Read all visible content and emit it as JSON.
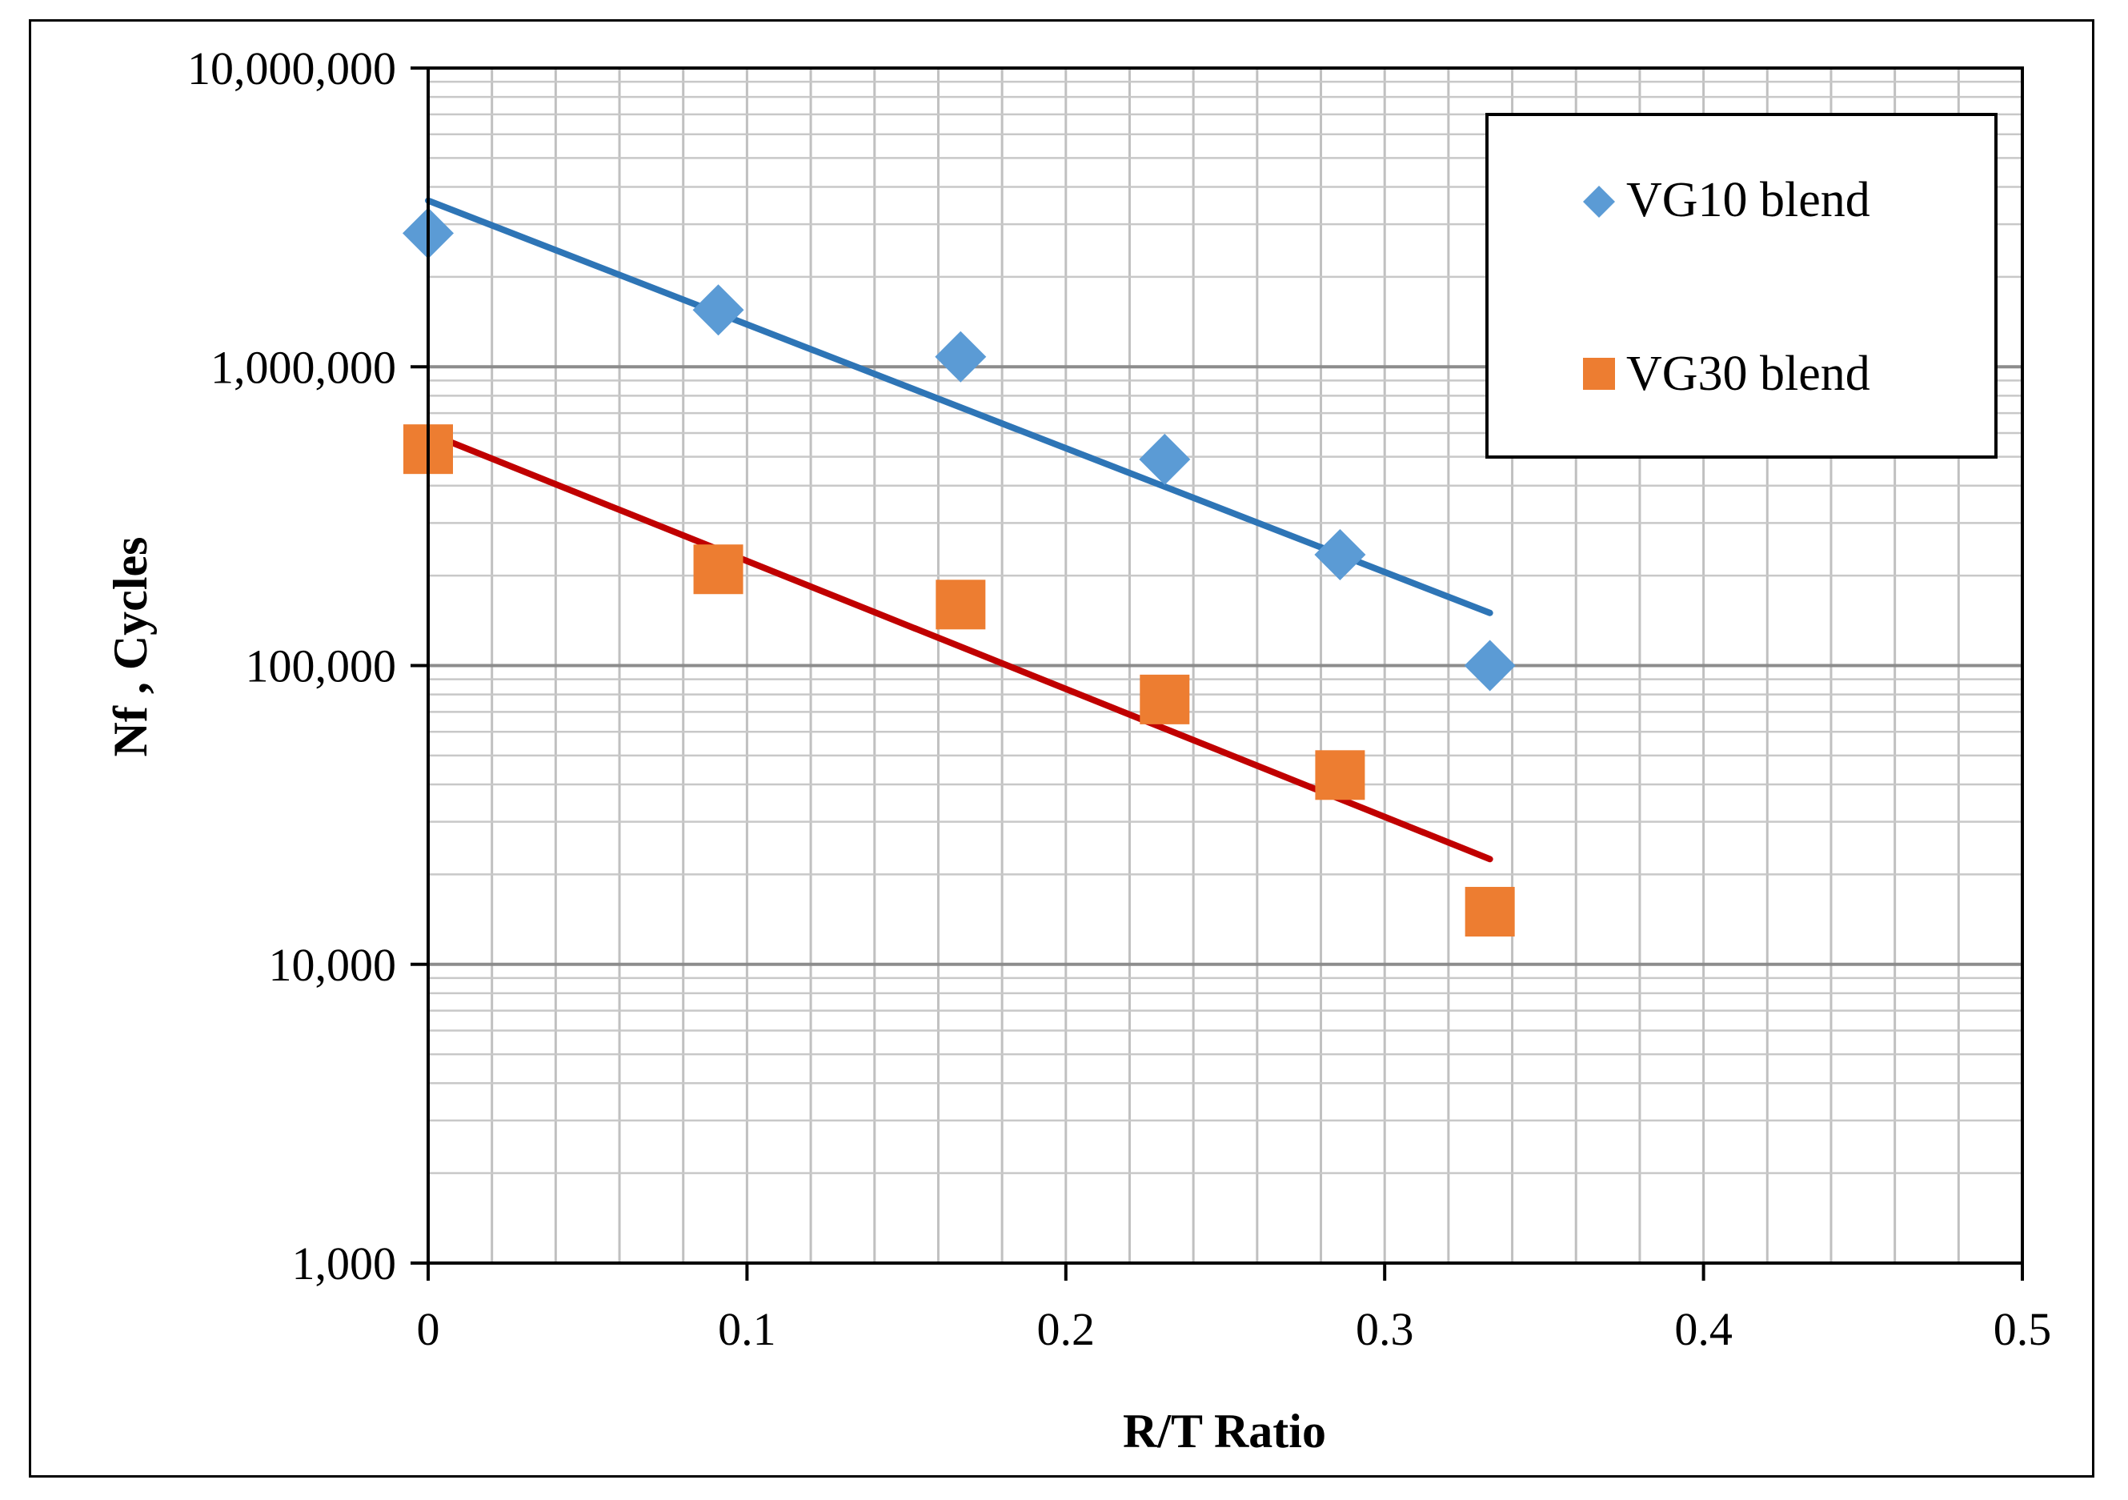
{
  "chart_data": {
    "type": "scatter",
    "title": "",
    "xlabel": "R/T Ratio",
    "ylabel": "Nf , Cycles",
    "xlim": [
      0,
      0.5
    ],
    "ylim": [
      1000,
      10000000
    ],
    "yscale": "log",
    "grid": true,
    "legend_position": "top-right",
    "x_ticks": [
      0,
      0.1,
      0.2,
      0.3,
      0.4,
      0.5
    ],
    "x_tick_labels": [
      "0",
      "0.1",
      "0.2",
      "0.3",
      "0.4",
      "0.5"
    ],
    "y_ticks": [
      1000,
      10000,
      100000,
      1000000,
      10000000
    ],
    "y_tick_labels": [
      "1,000",
      "10,000",
      "100,000",
      "1,000,000",
      "10,000,000"
    ],
    "series": [
      {
        "name": "VG10 blend",
        "marker": "diamond",
        "color": "#5B9BD5",
        "x": [
          0,
          0.091,
          0.167,
          0.231,
          0.286,
          0.333
        ],
        "y": [
          2800000,
          1550000,
          1080000,
          490000,
          235000,
          100000
        ],
        "trendline": {
          "x": [
            0,
            0.333
          ],
          "y": [
            3600000,
            150000
          ],
          "color": "#2E75B6"
        }
      },
      {
        "name": "VG30 blend",
        "marker": "square",
        "color": "#ED7D31",
        "x": [
          0,
          0.091,
          0.167,
          0.231,
          0.286,
          0.333
        ],
        "y": [
          530000,
          210000,
          160000,
          77000,
          43000,
          15000
        ],
        "trendline": {
          "x": [
            0,
            0.333
          ],
          "y": [
            600000,
            22500
          ],
          "color": "#C00000"
        }
      }
    ]
  }
}
